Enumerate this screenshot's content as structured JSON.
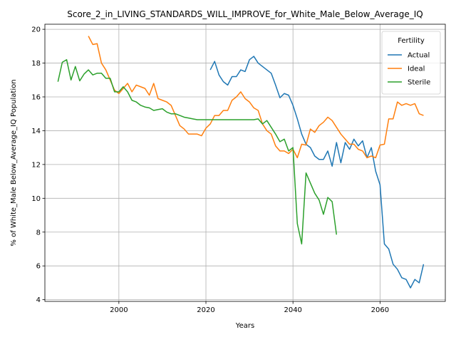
{
  "chart_data": {
    "type": "line",
    "title": "Score_2_in_LIVING_STANDARDS_WILL_IMPROVE_for_White_Male_Below_Average_IQ",
    "xlabel": "Years",
    "ylabel": "% of White_Male Below_Average_IQ Population",
    "xlim": [
      1983,
      2075
    ],
    "ylim": [
      3.9,
      20.3
    ],
    "xticks": [
      2000,
      2020,
      2040,
      2060
    ],
    "yticks": [
      4,
      6,
      8,
      10,
      12,
      14,
      16,
      18,
      20
    ],
    "grid": true,
    "legend": {
      "title": "Fertility",
      "placement": "top-right"
    },
    "series": [
      {
        "name": "Actual",
        "color": "#1f77b4",
        "points": [
          [
            2021,
            17.6
          ],
          [
            2022,
            18.1
          ],
          [
            2023,
            17.3
          ],
          [
            2024,
            16.9
          ],
          [
            2025,
            16.7
          ],
          [
            2026,
            17.2
          ],
          [
            2027,
            17.2
          ],
          [
            2028,
            17.6
          ],
          [
            2029,
            17.5
          ],
          [
            2030,
            18.2
          ],
          [
            2031,
            18.4
          ],
          [
            2032,
            18.0
          ],
          [
            2033,
            17.8
          ],
          [
            2034,
            17.6
          ],
          [
            2035,
            17.4
          ],
          [
            2036,
            16.7
          ],
          [
            2037,
            15.95
          ],
          [
            2038,
            16.2
          ],
          [
            2039,
            16.1
          ],
          [
            2040,
            15.5
          ],
          [
            2041,
            14.7
          ],
          [
            2042,
            13.8
          ],
          [
            2043,
            13.2
          ],
          [
            2044,
            13.0
          ],
          [
            2045,
            12.5
          ],
          [
            2046,
            12.3
          ],
          [
            2047,
            12.3
          ],
          [
            2048,
            12.8
          ],
          [
            2049,
            11.9
          ],
          [
            2050,
            13.3
          ],
          [
            2051,
            12.1
          ],
          [
            2052,
            13.3
          ],
          [
            2053,
            12.9
          ],
          [
            2054,
            13.5
          ],
          [
            2055,
            13.1
          ],
          [
            2056,
            13.4
          ],
          [
            2057,
            12.4
          ],
          [
            2058,
            13.0
          ],
          [
            2059,
            11.6
          ],
          [
            2060,
            10.8
          ],
          [
            2061,
            7.3
          ],
          [
            2062,
            7.0
          ],
          [
            2063,
            6.1
          ],
          [
            2064,
            5.8
          ],
          [
            2065,
            5.3
          ],
          [
            2066,
            5.2
          ],
          [
            2067,
            4.7
          ],
          [
            2068,
            5.2
          ],
          [
            2069,
            5.0
          ],
          [
            2070,
            6.1
          ]
        ]
      },
      {
        "name": "Ideal",
        "color": "#ff7f0e",
        "points": [
          [
            1993,
            19.6
          ],
          [
            1994,
            19.1
          ],
          [
            1995,
            19.15
          ],
          [
            1996,
            18.0
          ],
          [
            1997,
            17.6
          ],
          [
            1998,
            17.0
          ],
          [
            1999,
            16.4
          ],
          [
            2000,
            16.2
          ],
          [
            2001,
            16.5
          ],
          [
            2002,
            16.8
          ],
          [
            2003,
            16.3
          ],
          [
            2004,
            16.7
          ],
          [
            2005,
            16.6
          ],
          [
            2006,
            16.5
          ],
          [
            2007,
            16.1
          ],
          [
            2008,
            16.8
          ],
          [
            2009,
            15.9
          ],
          [
            2010,
            15.8
          ],
          [
            2011,
            15.7
          ],
          [
            2012,
            15.5
          ],
          [
            2013,
            14.9
          ],
          [
            2014,
            14.3
          ],
          [
            2015,
            14.1
          ],
          [
            2016,
            13.8
          ],
          [
            2017,
            13.8
          ],
          [
            2018,
            13.8
          ],
          [
            2019,
            13.7
          ],
          [
            2020,
            14.15
          ],
          [
            2021,
            14.4
          ],
          [
            2022,
            14.9
          ],
          [
            2023,
            14.9
          ],
          [
            2024,
            15.2
          ],
          [
            2025,
            15.2
          ],
          [
            2026,
            15.8
          ],
          [
            2027,
            16.0
          ],
          [
            2028,
            16.3
          ],
          [
            2029,
            15.9
          ],
          [
            2030,
            15.7
          ],
          [
            2031,
            15.35
          ],
          [
            2032,
            15.2
          ],
          [
            2033,
            14.4
          ],
          [
            2034,
            14.0
          ],
          [
            2035,
            13.8
          ],
          [
            2036,
            13.1
          ],
          [
            2037,
            12.8
          ],
          [
            2038,
            12.8
          ],
          [
            2039,
            12.65
          ],
          [
            2040,
            12.9
          ],
          [
            2041,
            12.4
          ],
          [
            2042,
            13.2
          ],
          [
            2043,
            13.15
          ],
          [
            2044,
            14.1
          ],
          [
            2045,
            13.9
          ],
          [
            2046,
            14.3
          ],
          [
            2047,
            14.5
          ],
          [
            2048,
            14.8
          ],
          [
            2049,
            14.6
          ],
          [
            2050,
            14.2
          ],
          [
            2051,
            13.8
          ],
          [
            2052,
            13.5
          ],
          [
            2053,
            13.2
          ],
          [
            2054,
            13.2
          ],
          [
            2055,
            12.9
          ],
          [
            2056,
            12.8
          ],
          [
            2057,
            12.4
          ],
          [
            2058,
            12.5
          ],
          [
            2059,
            12.4
          ],
          [
            2060,
            13.15
          ],
          [
            2061,
            13.2
          ],
          [
            2062,
            14.7
          ],
          [
            2063,
            14.7
          ],
          [
            2064,
            15.7
          ],
          [
            2065,
            15.5
          ],
          [
            2066,
            15.6
          ],
          [
            2067,
            15.5
          ],
          [
            2068,
            15.6
          ],
          [
            2069,
            15.0
          ],
          [
            2070,
            14.9
          ]
        ]
      },
      {
        "name": "Sterile",
        "color": "#2ca02c",
        "points": [
          [
            1986,
            16.9
          ],
          [
            1987,
            18.05
          ],
          [
            1988,
            18.2
          ],
          [
            1989,
            17.0
          ],
          [
            1990,
            17.8
          ],
          [
            1991,
            16.95
          ],
          [
            1992,
            17.35
          ],
          [
            1993,
            17.6
          ],
          [
            1994,
            17.3
          ],
          [
            1995,
            17.4
          ],
          [
            1996,
            17.4
          ],
          [
            1997,
            17.1
          ],
          [
            1998,
            17.1
          ],
          [
            1999,
            16.3
          ],
          [
            2000,
            16.3
          ],
          [
            2001,
            16.6
          ],
          [
            2002,
            16.3
          ],
          [
            2003,
            15.8
          ],
          [
            2004,
            15.7
          ],
          [
            2005,
            15.5
          ],
          [
            2006,
            15.4
          ],
          [
            2007,
            15.35
          ],
          [
            2008,
            15.2
          ],
          [
            2009,
            15.25
          ],
          [
            2010,
            15.3
          ],
          [
            2011,
            15.1
          ],
          [
            2012,
            15.0
          ],
          [
            2013,
            15.0
          ],
          [
            2014,
            14.9
          ],
          [
            2015,
            14.8
          ],
          [
            2016,
            14.75
          ],
          [
            2017,
            14.7
          ],
          [
            2018,
            14.65
          ],
          [
            2019,
            14.65
          ],
          [
            2020,
            14.65
          ],
          [
            2021,
            14.65
          ],
          [
            2022,
            14.65
          ],
          [
            2023,
            14.65
          ],
          [
            2024,
            14.65
          ],
          [
            2025,
            14.65
          ],
          [
            2026,
            14.65
          ],
          [
            2027,
            14.65
          ],
          [
            2028,
            14.65
          ],
          [
            2029,
            14.65
          ],
          [
            2030,
            14.65
          ],
          [
            2031,
            14.65
          ],
          [
            2032,
            14.7
          ],
          [
            2033,
            14.4
          ],
          [
            2034,
            14.6
          ],
          [
            2035,
            14.2
          ],
          [
            2036,
            13.8
          ],
          [
            2037,
            13.35
          ],
          [
            2038,
            13.5
          ],
          [
            2039,
            12.8
          ],
          [
            2040,
            13.0
          ],
          [
            2041,
            8.5
          ],
          [
            2042,
            7.3
          ],
          [
            2043,
            11.5
          ],
          [
            2044,
            10.9
          ],
          [
            2045,
            10.3
          ],
          [
            2046,
            9.9
          ],
          [
            2047,
            9.05
          ],
          [
            2048,
            10.05
          ],
          [
            2049,
            9.8
          ],
          [
            2050,
            7.85
          ]
        ]
      }
    ]
  }
}
